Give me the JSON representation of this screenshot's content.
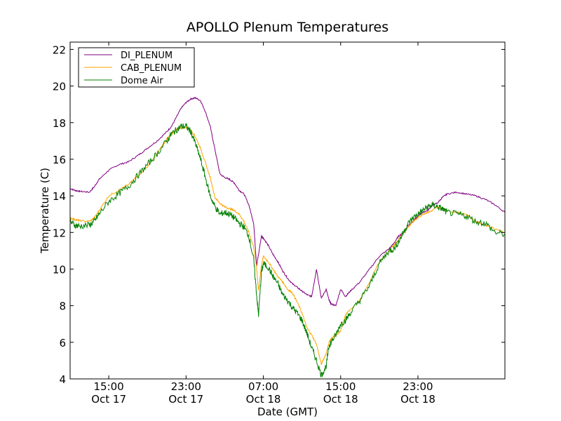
{
  "chart_data": {
    "type": "line",
    "title": "APOLLO Plenum Temperatures",
    "xlabel": "Date (GMT)",
    "ylabel": "Temperature (C)",
    "x_units": "hours since Oct 17 11:00 GMT",
    "xlim": [
      0,
      45
    ],
    "ylim": [
      4,
      22.4
    ],
    "yticks": [
      4,
      6,
      8,
      10,
      12,
      14,
      16,
      18,
      20,
      22
    ],
    "xticks": [
      {
        "x": 4,
        "time": "15:00",
        "date": "Oct 17"
      },
      {
        "x": 12,
        "time": "23:00",
        "date": "Oct 17"
      },
      {
        "x": 20,
        "time": "07:00",
        "date": "Oct 18"
      },
      {
        "x": 28,
        "time": "15:00",
        "date": "Oct 18"
      },
      {
        "x": 36,
        "time": "23:00",
        "date": "Oct 18"
      }
    ],
    "legend_position": "top-left",
    "series": [
      {
        "name": "DI_PLENUM",
        "color": "#800080",
        "x": [
          0,
          0.5,
          1,
          2,
          2.5,
          3,
          4,
          5,
          6,
          7,
          8,
          9,
          10,
          10.5,
          11,
          11.5,
          12,
          12.5,
          13,
          13.5,
          14,
          14.5,
          15,
          15.5,
          16,
          16.5,
          17,
          17.5,
          18,
          18.5,
          19,
          19.3,
          19.5,
          19.8,
          20,
          20.5,
          21,
          21.5,
          22,
          22.5,
          23,
          23.5,
          24,
          24.5,
          25,
          25.5,
          26,
          26.5,
          26.8,
          27,
          27.5,
          28,
          28.5,
          29,
          30,
          31,
          32,
          33,
          33.5,
          34,
          34.5,
          35,
          35.5,
          36,
          36.5,
          37,
          37.5,
          38,
          38.5,
          39,
          40,
          41,
          42,
          43,
          44,
          45
        ],
        "y": [
          14.4,
          14.3,
          14.25,
          14.2,
          14.5,
          14.9,
          15.4,
          15.7,
          15.85,
          16.2,
          16.6,
          17.0,
          17.5,
          17.8,
          18.3,
          18.8,
          19.1,
          19.3,
          19.35,
          19.2,
          18.6,
          17.8,
          16.5,
          15.2,
          15.0,
          14.9,
          14.7,
          14.3,
          14.1,
          13.5,
          12.5,
          10.2,
          10.8,
          11.8,
          11.7,
          11.3,
          10.8,
          10.4,
          9.9,
          9.5,
          9.2,
          9.0,
          8.8,
          8.6,
          8.5,
          10.0,
          8.4,
          8.9,
          8.3,
          8.1,
          8.0,
          8.9,
          8.5,
          8.8,
          9.3,
          10.0,
          10.7,
          11.1,
          11.4,
          11.8,
          12.0,
          12.4,
          12.6,
          12.9,
          13.1,
          13.2,
          13.5,
          13.6,
          13.9,
          14.1,
          14.2,
          14.1,
          14.0,
          13.8,
          13.5,
          13.1
        ]
      },
      {
        "name": "CAB_PLENUM",
        "color": "#FFA500",
        "x": [
          0,
          0.5,
          1,
          2,
          2.5,
          3,
          4,
          5,
          6,
          7,
          8,
          9,
          10,
          10.5,
          11,
          11.5,
          12,
          12.5,
          13,
          13.5,
          14,
          14.5,
          15,
          15.5,
          16,
          16.5,
          17,
          17.5,
          18,
          18.5,
          19,
          19.3,
          19.5,
          19.8,
          20,
          20.5,
          21,
          21.5,
          22,
          22.5,
          23,
          23.5,
          24,
          24.5,
          25,
          25.5,
          26,
          26.5,
          26.8,
          27,
          27.5,
          28,
          28.5,
          29,
          30,
          31,
          32,
          33,
          33.5,
          34,
          34.5,
          35,
          35.5,
          36,
          36.5,
          37,
          37.5,
          38,
          38.5,
          39,
          40,
          41,
          42,
          43,
          44,
          45
        ],
        "y": [
          12.8,
          12.7,
          12.65,
          12.6,
          12.8,
          13.2,
          14.0,
          14.3,
          14.6,
          15.1,
          15.6,
          16.3,
          17.1,
          17.4,
          17.6,
          17.7,
          17.75,
          17.6,
          17.2,
          16.6,
          15.8,
          15.0,
          13.9,
          13.6,
          13.4,
          13.3,
          13.2,
          13.0,
          12.6,
          12.0,
          11.2,
          10.1,
          8.8,
          10.2,
          10.7,
          10.4,
          10.0,
          9.6,
          9.3,
          8.9,
          8.7,
          8.2,
          7.6,
          6.8,
          6.4,
          5.9,
          4.8,
          5.4,
          6.0,
          6.2,
          6.4,
          6.6,
          7.5,
          7.8,
          8.3,
          9.3,
          10.4,
          11.0,
          11.3,
          11.6,
          12.0,
          12.3,
          12.6,
          12.8,
          13.0,
          13.1,
          13.2,
          13.4,
          13.3,
          13.2,
          13.1,
          13.0,
          12.6,
          12.4,
          12.2,
          12.0
        ]
      },
      {
        "name": "Dome Air",
        "color": "#008000",
        "x": [
          0,
          0.5,
          1,
          2,
          2.5,
          3,
          4,
          5,
          6,
          7,
          8,
          9,
          10,
          10.5,
          11,
          11.5,
          12,
          12.5,
          13,
          13.5,
          14,
          14.5,
          15,
          15.5,
          16,
          16.5,
          17,
          17.5,
          18,
          18.5,
          19,
          19.3,
          19.5,
          19.8,
          20,
          20.5,
          21,
          21.5,
          22,
          22.5,
          23,
          23.5,
          24,
          24.5,
          25,
          25.5,
          26,
          26.5,
          26.8,
          27,
          27.5,
          28,
          28.5,
          29,
          30,
          31,
          32,
          33,
          33.5,
          34,
          34.5,
          35,
          35.5,
          36,
          36.5,
          37,
          37.5,
          38,
          38.5,
          39,
          40,
          41,
          42,
          43,
          44,
          45
        ],
        "y": [
          12.6,
          12.4,
          12.35,
          12.4,
          12.6,
          13.0,
          13.7,
          14.1,
          14.5,
          15.1,
          15.7,
          16.3,
          17.0,
          17.4,
          17.6,
          17.8,
          17.8,
          17.5,
          16.8,
          16.0,
          15.0,
          14.0,
          13.4,
          13.0,
          13.1,
          13.0,
          12.8,
          12.5,
          12.3,
          11.8,
          10.5,
          8.6,
          7.5,
          9.8,
          10.3,
          10.1,
          9.6,
          9.2,
          8.6,
          8.3,
          7.9,
          7.6,
          7.2,
          6.5,
          5.7,
          5.0,
          4.2,
          4.7,
          5.8,
          6.0,
          6.4,
          7.0,
          7.2,
          7.6,
          8.3,
          9.1,
          10.3,
          11.0,
          11.1,
          11.5,
          12.0,
          12.5,
          12.8,
          13.0,
          13.2,
          13.4,
          13.5,
          13.4,
          13.3,
          13.1,
          13.0,
          12.9,
          12.6,
          12.5,
          12.0,
          11.9
        ]
      }
    ]
  }
}
